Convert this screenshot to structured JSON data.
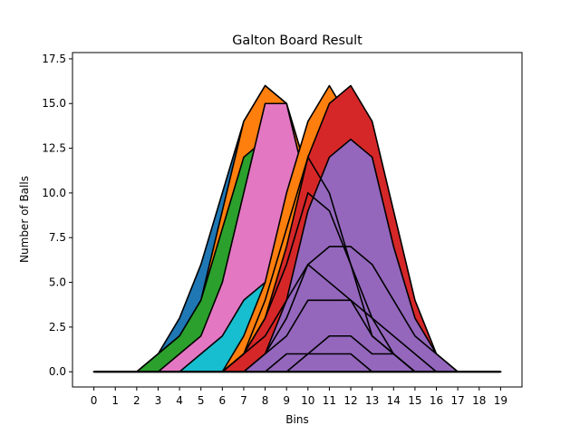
{
  "chart_data": {
    "type": "area",
    "title": "Galton Board Result",
    "xlabel": "Bins",
    "ylabel": "Number of Balls",
    "x": [
      0,
      1,
      2,
      3,
      4,
      5,
      6,
      7,
      8,
      9,
      10,
      11,
      12,
      13,
      14,
      15,
      16,
      17,
      18,
      19
    ],
    "xticks": [
      "0",
      "1",
      "2",
      "3",
      "4",
      "5",
      "6",
      "7",
      "8",
      "9",
      "10",
      "11",
      "12",
      "13",
      "14",
      "15",
      "16",
      "17",
      "18",
      "19"
    ],
    "yticks": [
      "0.0",
      "2.5",
      "5.0",
      "7.5",
      "10.0",
      "12.5",
      "15.0",
      "17.5"
    ],
    "xlim": [
      -1,
      20
    ],
    "ylim": [
      -0.85,
      17.85
    ],
    "grid": false,
    "legend": "none",
    "series": [
      {
        "color": "#1f77b4",
        "values": [
          0,
          0,
          0,
          1,
          3,
          6,
          10,
          14,
          16,
          15,
          11,
          6,
          2,
          1,
          0,
          0,
          0,
          0,
          0,
          0
        ]
      },
      {
        "color": "#ff7f0e",
        "values": [
          0,
          0,
          0,
          1,
          2,
          4,
          9,
          14,
          16,
          15,
          11,
          6,
          2,
          0,
          0,
          0,
          0,
          0,
          0,
          0
        ]
      },
      {
        "color": "#2ca02c",
        "values": [
          0,
          0,
          0,
          1,
          2,
          4,
          8,
          12,
          13,
          12,
          9,
          5,
          2,
          0,
          0,
          0,
          0,
          0,
          0,
          0
        ]
      },
      {
        "color": "#e377c2",
        "values": [
          0,
          0,
          0,
          0,
          1,
          2,
          5,
          10,
          15,
          15,
          10,
          6,
          2,
          1,
          0,
          0,
          0,
          0,
          0,
          0
        ]
      },
      {
        "color": "#17becf",
        "values": [
          0,
          0,
          0,
          0,
          0,
          1,
          2,
          4,
          5,
          7,
          7,
          5,
          3,
          1,
          0,
          0,
          0,
          0,
          0,
          0
        ]
      },
      {
        "color": "#ff7f0e",
        "values": [
          0,
          0,
          0,
          0,
          0,
          0,
          0,
          2,
          5,
          10,
          14,
          16,
          14,
          10,
          5,
          2,
          0,
          0,
          0,
          0
        ]
      },
      {
        "color": "#d62728",
        "values": [
          0,
          0,
          0,
          0,
          0,
          0,
          0,
          1,
          3,
          7,
          12,
          15,
          16,
          14,
          9,
          4,
          1,
          0,
          0,
          0
        ]
      },
      {
        "color": "#9467bd",
        "values": [
          0,
          0,
          0,
          0,
          0,
          0,
          0,
          0,
          1,
          4,
          9,
          12,
          13,
          12,
          7,
          3,
          1,
          0,
          0,
          0
        ]
      },
      {
        "color": "#9467bd",
        "values": [
          0,
          0,
          0,
          0,
          0,
          0,
          0,
          0,
          1,
          3,
          6,
          7,
          7,
          6,
          4,
          2,
          1,
          0,
          0,
          0
        ]
      },
      {
        "color": "#9467bd",
        "values": [
          0,
          0,
          0,
          0,
          0,
          0,
          0,
          0,
          1,
          2,
          4,
          4,
          4,
          3,
          2,
          1,
          0,
          0,
          0,
          0
        ]
      },
      {
        "color": "#9467bd",
        "values": [
          0,
          0,
          0,
          0,
          0,
          0,
          0,
          0,
          0,
          1,
          1,
          2,
          2,
          1,
          1,
          0,
          0,
          0,
          0,
          0
        ]
      },
      {
        "color": "#9467bd",
        "values": [
          0,
          0,
          0,
          0,
          0,
          0,
          0,
          0,
          0,
          0,
          1,
          1,
          1,
          0,
          0,
          0,
          0,
          0,
          0,
          0
        ]
      }
    ],
    "overlay_lines": [
      {
        "values": [
          0,
          0,
          0,
          0,
          0,
          0,
          0,
          1,
          4,
          8,
          12,
          10,
          6,
          2,
          1,
          0,
          0,
          0,
          0,
          0
        ]
      },
      {
        "values": [
          0,
          0,
          0,
          0,
          0,
          0,
          0,
          1,
          3,
          6,
          10,
          9,
          6,
          3,
          1,
          0,
          0,
          0,
          0,
          0
        ]
      },
      {
        "values": [
          0,
          0,
          0,
          0,
          0,
          0,
          0,
          1,
          2,
          4,
          6,
          5,
          4,
          2,
          1,
          0,
          0,
          0,
          0,
          0
        ]
      }
    ]
  }
}
